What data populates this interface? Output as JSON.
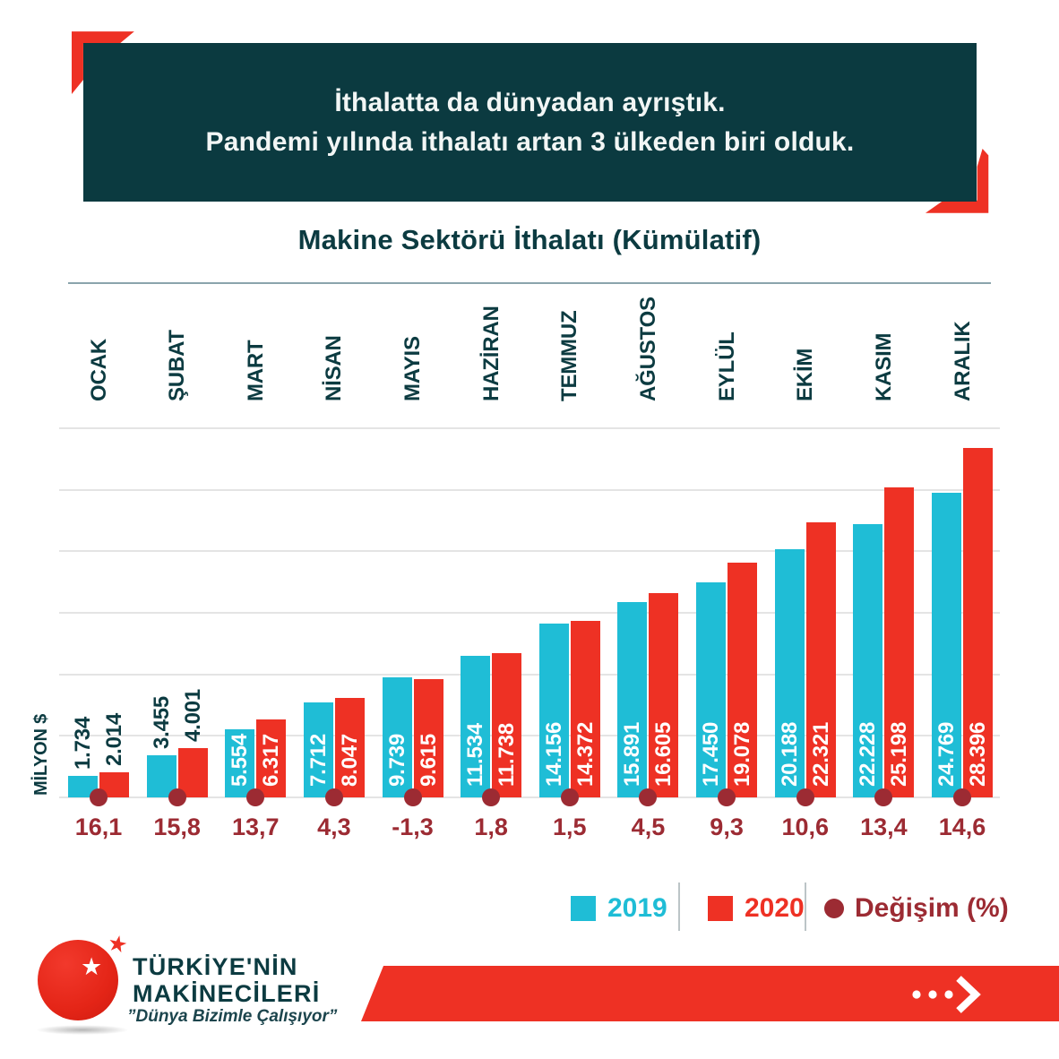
{
  "banner": {
    "line1": "İthalatta da dünyadan ayrıştık.",
    "line2": "Pandemi yılında ithalatı artan 3 ülkeden biri olduk."
  },
  "chart_data": {
    "type": "bar",
    "title": "Makine Sektörü İthalatı (Kümülatif)",
    "ylabel": "MİLYON $",
    "categories": [
      "OCAK",
      "ŞUBAT",
      "MART",
      "NİSAN",
      "MAYIS",
      "HAZİRAN",
      "TEMMUZ",
      "AĞUSTOS",
      "EYLÜL",
      "EKİM",
      "KASIM",
      "ARALIK"
    ],
    "series": [
      {
        "name": "2019",
        "color": "#1fbdd6",
        "values": [
          1734,
          3455,
          5554,
          7712,
          9739,
          11534,
          14156,
          15891,
          17450,
          20188,
          22228,
          24769
        ],
        "labels": [
          "1.734",
          "3.455",
          "5.554",
          "7.712",
          "9.739",
          "11.534",
          "14.156",
          "15.891",
          "17.450",
          "20.188",
          "22.228",
          "24.769"
        ]
      },
      {
        "name": "2020",
        "color": "#ee3124",
        "values": [
          2014,
          4001,
          6317,
          8047,
          9615,
          11738,
          14372,
          16605,
          19078,
          22321,
          25198,
          28396
        ],
        "labels": [
          "2.014",
          "4.001",
          "6.317",
          "8.047",
          "9.615",
          "11.738",
          "14.372",
          "16.605",
          "19.078",
          "22.321",
          "25.198",
          "28.396"
        ]
      }
    ],
    "change": {
      "name": "Değişim (%)",
      "color": "#9c2b33",
      "values": [
        16.1,
        15.8,
        13.7,
        4.3,
        -1.3,
        1.8,
        1.5,
        4.5,
        9.3,
        10.6,
        13.4,
        14.6
      ],
      "labels": [
        "16,1",
        "15,8",
        "13,7",
        "4,3",
        "-1,3",
        "1,8",
        "1,5",
        "4,5",
        "9,3",
        "10,6",
        "13,4",
        "14,6"
      ]
    },
    "ylim": [
      0,
      30000
    ],
    "grid_step": 5000,
    "grid": true,
    "legend_position": "bottom-right",
    "bar_text_color_inside": "#ffffff",
    "bar_text_color_outside": "#0c3b41",
    "gridline_color": "#e4e4e4"
  },
  "legend": {
    "items": [
      {
        "label": "2019",
        "color": "#1fbdd6",
        "swatch": "square"
      },
      {
        "label": "2020",
        "color": "#ee3124",
        "swatch": "square"
      },
      {
        "label": "Değişim (%)",
        "color": "#9c2b33",
        "swatch": "circle"
      }
    ]
  },
  "logo": {
    "line1": "TÜRKİYE'NİN",
    "line2": "MAKİNECİLERİ",
    "tagline": "”Dünya Bizimle Çalışıyor”",
    "star_icon": "★"
  },
  "colors": {
    "teal_dark": "#0b3a40",
    "text_teal": "#0c3b41",
    "cyan_2019": "#1fbdd6",
    "red_2020": "#ee3124",
    "maroon_change": "#9c2b33",
    "rule": "#8aa4ac",
    "gridline": "#e4e4e4"
  }
}
